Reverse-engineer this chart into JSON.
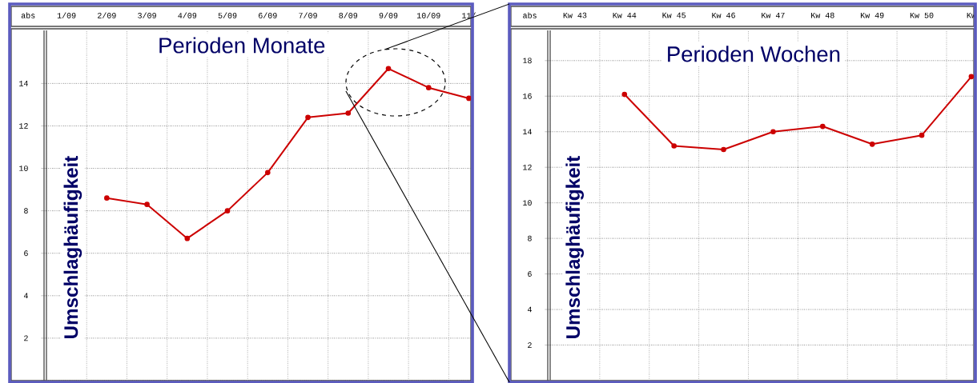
{
  "chart_data": [
    {
      "type": "line",
      "title": "Perioden Monate",
      "ylabel": "Umschlaghäufigkeit",
      "categories": [
        "1/09",
        "2/09",
        "3/09",
        "4/09",
        "5/09",
        "6/09",
        "7/09",
        "8/09",
        "9/09",
        "10/09",
        "11/"
      ],
      "values": [
        null,
        8.6,
        8.3,
        6.7,
        8.0,
        9.8,
        12.4,
        12.6,
        14.7,
        13.8,
        13.3
      ],
      "color": "#cc0000",
      "ylim": [
        0,
        16.5
      ],
      "yticks": [
        {
          "value": 0,
          "label": null
        },
        2,
        4,
        6,
        8,
        10,
        12,
        14
      ],
      "grid": true,
      "marker": "circle",
      "line_style": "solid",
      "annotations": [
        "abs"
      ]
    },
    {
      "type": "line",
      "title": "Perioden Wochen",
      "ylabel": "Umschlaghäufigkeit",
      "categories": [
        "Kw 43",
        "Kw 44",
        "Kw 45",
        "Kw 46",
        "Kw 47",
        "Kw 48",
        "Kw 49",
        "Kw 50",
        "Kw"
      ],
      "values": [
        null,
        16.1,
        13.2,
        13.0,
        14.0,
        14.3,
        13.3,
        13.8,
        17.1
      ],
      "color": "#cc0000",
      "ylim": [
        0,
        19.7
      ],
      "yticks": [
        2,
        4,
        6,
        8,
        10,
        12,
        14,
        16,
        18
      ],
      "grid": true,
      "marker": "circle",
      "line_style": "solid",
      "annotations": [
        "abs"
      ]
    }
  ]
}
